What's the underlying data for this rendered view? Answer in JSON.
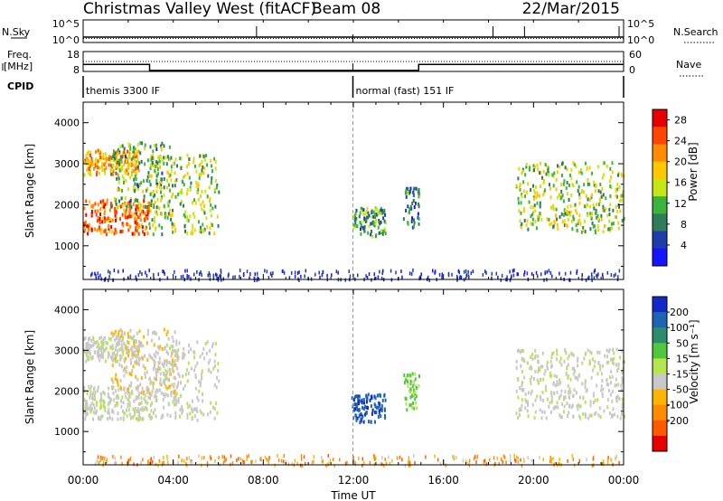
{
  "header": {
    "title": "Christmas Valley West (fitACF)",
    "beam": "Beam 08",
    "date": "22/Mar/2015"
  },
  "chart_data": [
    {
      "type": "line",
      "panel": "noise",
      "left_label": "N.Sky",
      "left_ticks": [
        "10^5",
        "10^0"
      ],
      "right_label": "N.Search",
      "right_ticks": [
        "10^5",
        "10^0"
      ],
      "series": [
        {
          "name": "N.Sky",
          "style": "solid",
          "x": [
            0,
            24
          ],
          "y": [
            2,
            2
          ]
        },
        {
          "name": "N.Search",
          "style": "dotted",
          "x": [
            0,
            24
          ],
          "y": [
            1,
            1
          ]
        }
      ],
      "spikes_hours": [
        7.7,
        18.2,
        19.6,
        23.8
      ]
    },
    {
      "type": "line",
      "panel": "freq-nave",
      "left_label": "Freq. [MHz]",
      "left_ticks": [
        "18",
        "8"
      ],
      "right_label": "Nave",
      "right_ticks": [
        "60",
        "0"
      ],
      "series": [
        {
          "name": "Freq.",
          "style": "solid",
          "x": [
            0,
            2.95,
            2.95,
            14.9,
            14.9,
            24
          ],
          "y": [
            11.5,
            11.5,
            8.5,
            8.5,
            11.5,
            11.5
          ]
        },
        {
          "name": "Nave",
          "style": "dotted",
          "x": [
            0,
            24
          ],
          "y": [
            30,
            30
          ]
        }
      ]
    },
    {
      "type": "table",
      "panel": "cpid",
      "label": "CPID",
      "segments": [
        {
          "start_hour": 0,
          "end_hour": 11.98,
          "name": "themis 3300 IF"
        },
        {
          "start_hour": 11.98,
          "end_hour": 24,
          "name": "normal (fast) 151 IF"
        }
      ]
    },
    {
      "type": "heatmap",
      "panel": "power",
      "ylabel": "Slant Range [km]",
      "yticks": [
        1000,
        2000,
        3000,
        4000
      ],
      "ylim": [
        180,
        4500
      ],
      "xlim": [
        0,
        24
      ],
      "colorbar": {
        "label": "Power [dB]",
        "ticks": [
          4,
          8,
          12,
          16,
          20,
          24,
          28
        ],
        "range": [
          0,
          30
        ],
        "colors": [
          "#1414ff",
          "#1e3caa",
          "#2e7d5a",
          "#3cb43c",
          "#c8e614",
          "#ffc800",
          "#ff8c00",
          "#ff4600",
          "#e60000"
        ]
      },
      "regions": [
        {
          "from_hour": 0.0,
          "to_hour": 2.9,
          "range_start_km": 1250,
          "range_end_km": 2100,
          "mean_db": 24
        },
        {
          "from_hour": 0.0,
          "to_hour": 2.5,
          "range_start_km": 2700,
          "range_end_km": 3300,
          "mean_db": 20
        },
        {
          "from_hour": 1.2,
          "to_hour": 3.9,
          "range_start_km": 1900,
          "range_end_km": 3500,
          "mean_db": 12
        },
        {
          "from_hour": 2.9,
          "to_hour": 6.0,
          "range_start_km": 1250,
          "range_end_km": 3200,
          "mean_db": 14
        },
        {
          "from_hour": 11.9,
          "to_hour": 13.4,
          "range_start_km": 1200,
          "range_end_km": 1900,
          "mean_db": 10
        },
        {
          "from_hour": 14.2,
          "to_hour": 14.9,
          "range_start_km": 1400,
          "range_end_km": 2400,
          "mean_db": 8
        },
        {
          "from_hour": 19.2,
          "to_hour": 24.0,
          "range_start_km": 1300,
          "range_end_km": 3000,
          "mean_db": 14
        }
      ]
    },
    {
      "type": "heatmap",
      "panel": "velocity",
      "ylabel": "Slant Range [km]",
      "yticks": [
        1000,
        2000,
        3000,
        4000
      ],
      "ylim": [
        180,
        4500
      ],
      "xlim": [
        0,
        24
      ],
      "xticks": [
        "00:00",
        "04:00",
        "08:00",
        "12:00",
        "16:00",
        "20:00",
        "00:00"
      ],
      "xlabel": "Time UT",
      "colorbar": {
        "label": "Velocity [m s⁻¹]",
        "ticks": [
          "200",
          "100",
          "50",
          "15",
          "-15",
          "-50",
          "-100",
          "-200"
        ],
        "colors": [
          "#1428c8",
          "#1e64b4",
          "#2d8c6e",
          "#50c83c",
          "#b4e650",
          "#c8c8c8",
          "#ffb400",
          "#ff8c00",
          "#ff5a00",
          "#e60000"
        ]
      },
      "regions": [
        {
          "from_hour": 0.0,
          "to_hour": 2.9,
          "range_start_km": 1250,
          "range_end_km": 2100,
          "mean_ms": 0
        },
        {
          "from_hour": 0.0,
          "to_hour": 2.5,
          "range_start_km": 2700,
          "range_end_km": 3300,
          "mean_ms": 0
        },
        {
          "from_hour": 1.2,
          "to_hour": 4.2,
          "range_start_km": 1900,
          "range_end_km": 3500,
          "mean_ms": -30
        },
        {
          "from_hour": 2.9,
          "to_hour": 6.0,
          "range_start_km": 1250,
          "range_end_km": 3200,
          "mean_ms": 0
        },
        {
          "from_hour": 11.9,
          "to_hour": 13.4,
          "range_start_km": 1200,
          "range_end_km": 1900,
          "mean_ms": 150
        },
        {
          "from_hour": 14.2,
          "to_hour": 14.9,
          "range_start_km": 1500,
          "range_end_km": 2400,
          "mean_ms": 40
        },
        {
          "from_hour": 19.2,
          "to_hour": 24.0,
          "range_start_km": 1300,
          "range_end_km": 3000,
          "mean_ms": 0
        }
      ]
    }
  ]
}
